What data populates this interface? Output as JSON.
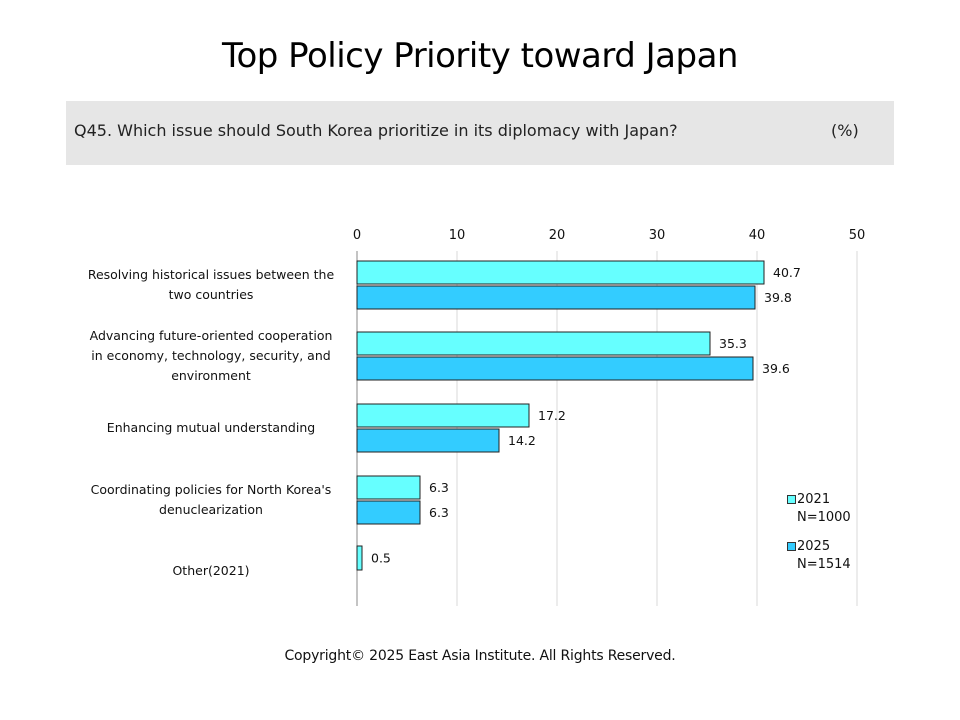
{
  "title": "Top Policy Priority toward Japan",
  "question": "Q45. Which issue should South Korea prioritize in its diplomacy with Japan?",
  "unit": "(%)",
  "copyright": "Copyright© 2025 East Asia Institute. All Rights Reserved.",
  "colors": {
    "series_2021": "#66ffff",
    "series_2025": "#33ccff",
    "grid": "#d9d9d9",
    "bar_border": "#222222"
  },
  "chart_data": {
    "type": "bar",
    "orientation": "horizontal",
    "xlim": [
      0,
      50
    ],
    "ticks": [
      "0",
      "10",
      "20",
      "30",
      "40",
      "50"
    ],
    "tick_values": [
      0,
      10,
      20,
      30,
      40,
      50
    ],
    "grid": true,
    "legend_position": "right",
    "categories": [
      [
        "Resolving historical issues between the",
        "two countries"
      ],
      [
        "Advancing future-oriented cooperation",
        "in economy, technology, security, and",
        "environment"
      ],
      [
        "Enhancing mutual understanding"
      ],
      [
        "Coordinating  policies  for North Korea's",
        "denuclearization"
      ],
      [
        "Other(2021)"
      ]
    ],
    "series": [
      {
        "name": "2021",
        "sub": "N=1000",
        "color": "#66ffff",
        "values": [
          40.7,
          35.3,
          17.2,
          6.3,
          0.5
        ],
        "labels": [
          "40.7",
          "35.3",
          "17.2",
          "6.3",
          "0.5"
        ]
      },
      {
        "name": "2025",
        "sub": "N=1514",
        "color": "#33ccff",
        "values": [
          39.8,
          39.6,
          14.2,
          6.3,
          null
        ],
        "labels": [
          "39.8",
          "39.6",
          "14.2",
          "6.3",
          ""
        ]
      }
    ]
  }
}
